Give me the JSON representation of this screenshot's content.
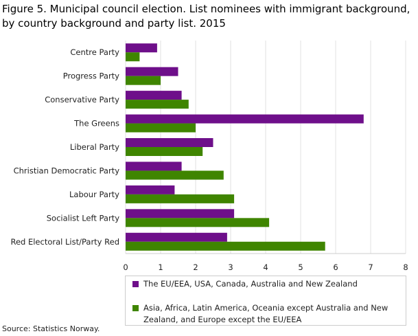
{
  "title": "Figure 5. Municipal council election. List nominees with immigrant background, by country background and party list. 2015",
  "source": "Source: Statistics Norway.",
  "chart_data": {
    "type": "bar",
    "orientation": "horizontal",
    "categories": [
      "Centre Party",
      "Progress Party",
      "Conservative Party",
      "The Greens",
      "Liberal Party",
      "Christian Democratic Party",
      "Labour Party",
      "Socialist Left Party",
      "Red Electoral List/Party Red"
    ],
    "series": [
      {
        "name": "The EU/EEA, USA, Canada, Australia and New Zealand",
        "color": "#6e0f8a",
        "values": [
          0.9,
          1.5,
          1.6,
          6.8,
          2.5,
          1.6,
          1.4,
          3.1,
          2.9
        ]
      },
      {
        "name": "Asia, Africa, Latin America, Oceania except Australia and New Zealand, and Europe except the EU/EEA",
        "color": "#3f8500",
        "values": [
          0.4,
          1.0,
          1.8,
          2.0,
          2.2,
          2.8,
          3.1,
          4.1,
          5.7
        ]
      }
    ],
    "xlim": [
      0,
      8
    ],
    "xticks": [
      "0",
      "1",
      "2",
      "3",
      "4",
      "5",
      "6",
      "7",
      "8"
    ],
    "grid": true,
    "legend_placement": "bottom"
  }
}
